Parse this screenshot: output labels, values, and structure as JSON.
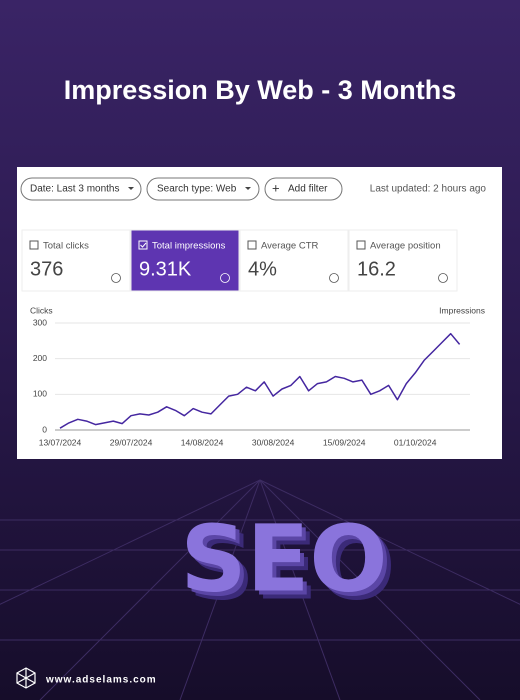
{
  "header": {
    "title": "Impression By Web - 3 Months"
  },
  "filters": [
    "Date: Last 3 months",
    "Search type: Web",
    "Add filter"
  ],
  "last_updated": "Last updated: 2 hours ago",
  "metrics": [
    {
      "label": "Total clicks",
      "value": "376"
    },
    {
      "label": "Total impressions",
      "value": "9.31K"
    },
    {
      "label": "Average CTR",
      "value": "4%"
    },
    {
      "label": "Average position",
      "value": "16.2"
    }
  ],
  "chart": {
    "type": "line",
    "y_label": "Clicks",
    "y2_label": "Impressions",
    "ylim": [
      0,
      300
    ],
    "yticks": [
      0,
      100,
      200,
      300
    ],
    "color": "#4527a0",
    "x_labels": [
      "13/07/2024",
      "29/07/2024",
      "14/08/2024",
      "30/08/2024",
      "15/09/2024",
      "01/10/2024"
    ],
    "values": [
      5,
      20,
      30,
      25,
      15,
      20,
      25,
      18,
      40,
      45,
      42,
      50,
      65,
      55,
      40,
      60,
      50,
      45,
      70,
      95,
      100,
      120,
      110,
      135,
      95,
      115,
      125,
      150,
      110,
      130,
      135,
      150,
      145,
      135,
      140,
      100,
      110,
      125,
      85,
      130,
      160,
      195,
      220,
      245,
      270,
      240
    ]
  },
  "hero_text": "SEO",
  "footer": {
    "url": "www.adselams.com"
  }
}
